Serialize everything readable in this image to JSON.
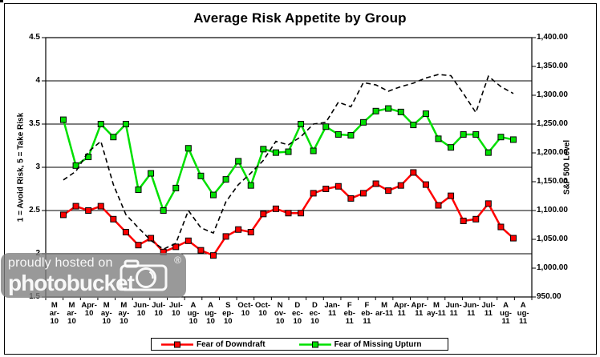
{
  "chart_data": {
    "type": "line",
    "title": "Average Risk Appetite by Group",
    "grid": true,
    "legend_position": "bottom",
    "n_points": 37,
    "left_axis": {
      "label": "1 = Avoid Risk, 5 = Take Risk",
      "min": 1.5,
      "max": 4.5,
      "ticks": [
        "4.5",
        "4",
        "3.5",
        "3",
        "2.5",
        "2",
        "1.5"
      ],
      "gridline_values": [
        4,
        3.5,
        3,
        2.5,
        2
      ]
    },
    "right_axis": {
      "label": "S&P 500 Level",
      "min": 950,
      "max": 1400,
      "ticks": [
        "1,400.00",
        "1,350.00",
        "1,300.00",
        "1,250.00",
        "1,200.00",
        "1,150.00",
        "1,100.00",
        "1,050.00",
        "1,000.00",
        "950.00"
      ]
    },
    "x_axis": {
      "tick_labels": [
        [
          "M",
          "ar-",
          "10"
        ],
        [
          "M",
          "ar-",
          "10"
        ],
        [
          "Apr-",
          "10"
        ],
        [
          "M",
          "ay-",
          "10"
        ],
        [
          "M",
          "ay-",
          "10"
        ],
        [
          "Jun-",
          "10"
        ],
        [
          "Jul-",
          "10"
        ],
        [
          "Jul-",
          "10"
        ],
        [
          "A",
          "ug-",
          "10"
        ],
        [
          "A",
          "ug-",
          "10"
        ],
        [
          "S",
          "ep-",
          "10"
        ],
        [
          "Oct-",
          "10"
        ],
        [
          "Oct-",
          "10"
        ],
        [
          "N",
          "ov-",
          "10"
        ],
        [
          "D",
          "ec-",
          "10"
        ],
        [
          "D",
          "ec-",
          "10"
        ],
        [
          "Jan-",
          "11"
        ],
        [
          "F",
          "eb-",
          "11"
        ],
        [
          "F",
          "eb-",
          "11"
        ],
        [
          "M",
          "ar-11"
        ],
        [
          "Apr-",
          "11"
        ],
        [
          "Apr-",
          "11"
        ],
        [
          "M",
          "ay-11"
        ],
        [
          "Jun-",
          "11"
        ],
        [
          "Jun-",
          "11"
        ],
        [
          "Jul-",
          "11"
        ],
        [
          "A",
          "ug-",
          "11"
        ],
        [
          "A",
          "ug-",
          "11"
        ]
      ]
    },
    "series": [
      {
        "name": "Fear of Downdraft",
        "color": "#FF0000",
        "marker": "square",
        "style": "solid",
        "axis": "left",
        "values": [
          2.45,
          2.55,
          2.5,
          2.55,
          2.4,
          2.25,
          2.1,
          2.18,
          2.02,
          2.08,
          2.15,
          2.04,
          1.98,
          2.2,
          2.28,
          2.25,
          2.46,
          2.52,
          2.47,
          2.47,
          2.7,
          2.75,
          2.78,
          2.64,
          2.7,
          2.81,
          2.73,
          2.79,
          2.94,
          2.8,
          2.56,
          2.67,
          2.38,
          2.4,
          2.58,
          2.31,
          2.18
        ]
      },
      {
        "name": "Fear of Missing Upturn",
        "color": "#00E000",
        "marker": "square",
        "style": "solid",
        "axis": "left",
        "values": [
          3.55,
          3.02,
          3.12,
          3.5,
          3.35,
          3.5,
          2.74,
          2.93,
          2.5,
          2.76,
          3.22,
          2.9,
          2.68,
          2.86,
          3.07,
          2.79,
          3.21,
          3.17,
          3.18,
          3.5,
          3.19,
          3.47,
          3.38,
          3.37,
          3.52,
          3.65,
          3.68,
          3.64,
          3.49,
          3.62,
          3.33,
          3.23,
          3.38,
          3.38,
          3.17,
          3.35,
          3.32
        ]
      },
      {
        "name": "S&P 500",
        "color": "#000000",
        "marker": "none",
        "style": "dashed",
        "axis": "right",
        "values": [
          1153,
          1168,
          1202,
          1220,
          1145,
          1093,
          1070,
          1048,
          1033,
          1043,
          1100,
          1070,
          1061,
          1115,
          1145,
          1165,
          1187,
          1220,
          1214,
          1228,
          1250,
          1253,
          1288,
          1280,
          1322,
          1318,
          1307,
          1315,
          1321,
          1330,
          1336,
          1334,
          1303,
          1270,
          1333,
          1315,
          1303
        ]
      }
    ],
    "legend": [
      "Fear of Downdraft",
      "Fear of Missing Upturn"
    ]
  },
  "watermark": {
    "line1": "proudly hosted on",
    "line2": "photobucket",
    "registered": "®"
  }
}
